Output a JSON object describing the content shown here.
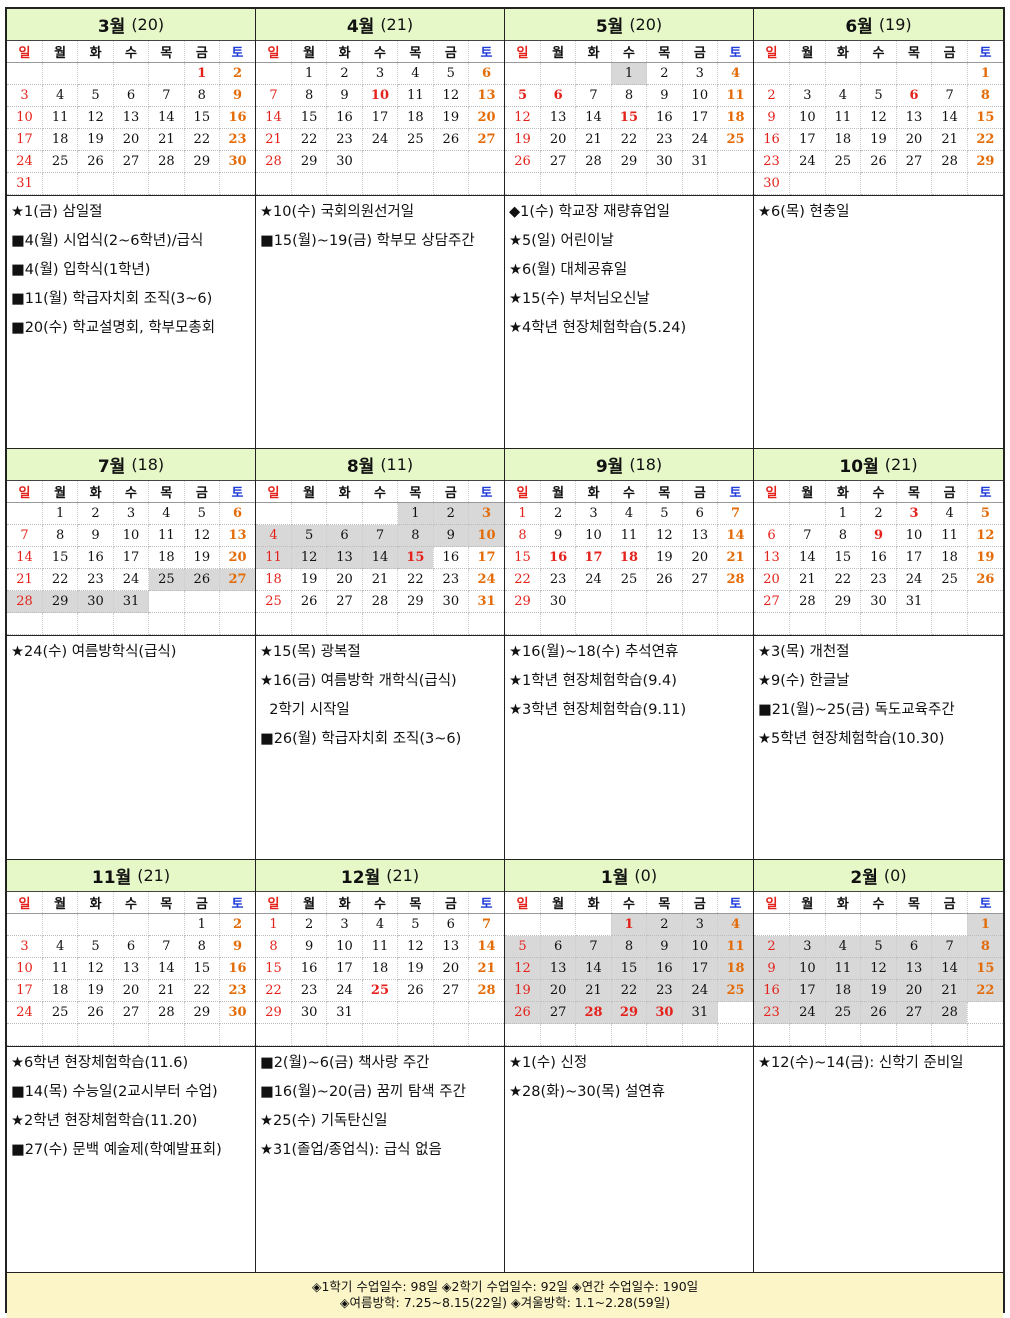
{
  "day_headers": [
    "일",
    "월",
    "화",
    "수",
    "목",
    "금",
    "토"
  ],
  "rows": [
    {
      "months": [
        {
          "name": "3월",
          "count": "(20)",
          "weeks": [
            [
              "",
              "",
              "",
              "",
              "",
              "1",
              "2"
            ],
            [
              "3",
              "4",
              "5",
              "6",
              "7",
              "8",
              "9"
            ],
            [
              "10",
              "11",
              "12",
              "13",
              "14",
              "15",
              "16"
            ],
            [
              "17",
              "18",
              "19",
              "20",
              "21",
              "22",
              "23"
            ],
            [
              "24",
              "25",
              "26",
              "27",
              "28",
              "29",
              "30"
            ],
            [
              "31",
              "",
              "",
              "",
              "",
              "",
              ""
            ]
          ],
          "holidays": [
            "1"
          ],
          "shaded": [],
          "events": [
            "★1(금) 삼일절",
            "■4(월) 시업식(2~6학년)/급식",
            "■4(월) 입학식(1학년)",
            "■11(월) 학급자치회 조직(3~6)",
            "■20(수) 학교설명회, 학부모총회"
          ]
        },
        {
          "name": "4월",
          "count": "(21)",
          "weeks": [
            [
              "",
              "1",
              "2",
              "3",
              "4",
              "5",
              "6"
            ],
            [
              "7",
              "8",
              "9",
              "10",
              "11",
              "12",
              "13"
            ],
            [
              "14",
              "15",
              "16",
              "17",
              "18",
              "19",
              "20"
            ],
            [
              "21",
              "22",
              "23",
              "24",
              "25",
              "26",
              "27"
            ],
            [
              "28",
              "29",
              "30",
              "",
              "",
              "",
              ""
            ]
          ],
          "holidays": [
            "10"
          ],
          "shaded": [],
          "events": [
            "★10(수) 국회의원선거일",
            "■15(월)~19(금) 학부모 상담주간"
          ]
        },
        {
          "name": "5월",
          "count": "(20)",
          "weeks": [
            [
              "",
              "",
              "",
              "1",
              "2",
              "3",
              "4"
            ],
            [
              "5",
              "6",
              "7",
              "8",
              "9",
              "10",
              "11"
            ],
            [
              "12",
              "13",
              "14",
              "15",
              "16",
              "17",
              "18"
            ],
            [
              "19",
              "20",
              "21",
              "22",
              "23",
              "24",
              "25"
            ],
            [
              "26",
              "27",
              "28",
              "29",
              "30",
              "31",
              ""
            ]
          ],
          "holidays": [
            "5",
            "6",
            "15"
          ],
          "shaded": [
            "1"
          ],
          "events": [
            "◆1(수) 학교장 재량휴업일",
            "★5(일) 어린이날",
            "★6(월) 대체공휴일",
            "★15(수) 부처님오신날",
            "★4학년 현장체험학습(5.24)"
          ]
        },
        {
          "name": "6월",
          "count": "(19)",
          "weeks": [
            [
              "",
              "",
              "",
              "",
              "",
              "",
              "1"
            ],
            [
              "2",
              "3",
              "4",
              "5",
              "6",
              "7",
              "8"
            ],
            [
              "9",
              "10",
              "11",
              "12",
              "13",
              "14",
              "15"
            ],
            [
              "16",
              "17",
              "18",
              "19",
              "20",
              "21",
              "22"
            ],
            [
              "23",
              "24",
              "25",
              "26",
              "27",
              "28",
              "29"
            ],
            [
              "30",
              "",
              "",
              "",
              "",
              "",
              ""
            ]
          ],
          "holidays": [
            "6"
          ],
          "shaded": [],
          "events": [
            "★6(목) 현충일"
          ]
        }
      ]
    },
    {
      "months": [
        {
          "name": "7월",
          "count": "(18)",
          "weeks": [
            [
              "",
              "1",
              "2",
              "3",
              "4",
              "5",
              "6"
            ],
            [
              "7",
              "8",
              "9",
              "10",
              "11",
              "12",
              "13"
            ],
            [
              "14",
              "15",
              "16",
              "17",
              "18",
              "19",
              "20"
            ],
            [
              "21",
              "22",
              "23",
              "24",
              "25",
              "26",
              "27"
            ],
            [
              "28",
              "29",
              "30",
              "31",
              "",
              "",
              ""
            ]
          ],
          "holidays": [],
          "shaded": [
            "25",
            "26",
            "27",
            "28",
            "29",
            "30",
            "31"
          ],
          "events": [
            "★24(수) 여름방학식(급식)"
          ]
        },
        {
          "name": "8월",
          "count": "(11)",
          "weeks": [
            [
              "",
              "",
              "",
              "",
              "1",
              "2",
              "3"
            ],
            [
              "4",
              "5",
              "6",
              "7",
              "8",
              "9",
              "10"
            ],
            [
              "11",
              "12",
              "13",
              "14",
              "15",
              "16",
              "17"
            ],
            [
              "18",
              "19",
              "20",
              "21",
              "22",
              "23",
              "24"
            ],
            [
              "25",
              "26",
              "27",
              "28",
              "29",
              "30",
              "31"
            ]
          ],
          "holidays": [
            "15"
          ],
          "shaded": [
            "1",
            "2",
            "3",
            "4",
            "5",
            "6",
            "7",
            "8",
            "9",
            "10",
            "11",
            "12",
            "13",
            "14",
            "15"
          ],
          "events": [
            "★15(목) 광복절",
            "★16(금) 여름방학 개학식(급식)",
            "  2학기 시작일",
            "■26(월) 학급자치회 조직(3~6)"
          ]
        },
        {
          "name": "9월",
          "count": "(18)",
          "weeks": [
            [
              "1",
              "2",
              "3",
              "4",
              "5",
              "6",
              "7"
            ],
            [
              "8",
              "9",
              "10",
              "11",
              "12",
              "13",
              "14"
            ],
            [
              "15",
              "16",
              "17",
              "18",
              "19",
              "20",
              "21"
            ],
            [
              "22",
              "23",
              "24",
              "25",
              "26",
              "27",
              "28"
            ],
            [
              "29",
              "30",
              "",
              "",
              "",
              "",
              ""
            ]
          ],
          "holidays": [
            "16",
            "17",
            "18"
          ],
          "shaded": [],
          "events": [
            "★16(월)~18(수) 추석연휴",
            "★1학년 현장체험학습(9.4)",
            "★3학년 현장체험학습(9.11)"
          ]
        },
        {
          "name": "10월",
          "count": "(21)",
          "weeks": [
            [
              "",
              "",
              "1",
              "2",
              "3",
              "4",
              "5"
            ],
            [
              "6",
              "7",
              "8",
              "9",
              "10",
              "11",
              "12"
            ],
            [
              "13",
              "14",
              "15",
              "16",
              "17",
              "18",
              "19"
            ],
            [
              "20",
              "21",
              "22",
              "23",
              "24",
              "25",
              "26"
            ],
            [
              "27",
              "28",
              "29",
              "30",
              "31",
              "",
              ""
            ]
          ],
          "holidays": [
            "3",
            "9"
          ],
          "shaded": [],
          "events": [
            "★3(목) 개천절",
            "★9(수) 한글날",
            "■21(월)~25(금) 독도교육주간",
            "★5학년 현장체험학습(10.30)"
          ]
        }
      ]
    },
    {
      "months": [
        {
          "name": "11월",
          "count": "(21)",
          "weeks": [
            [
              "",
              "",
              "",
              "",
              "",
              "1",
              "2"
            ],
            [
              "3",
              "4",
              "5",
              "6",
              "7",
              "8",
              "9"
            ],
            [
              "10",
              "11",
              "12",
              "13",
              "14",
              "15",
              "16"
            ],
            [
              "17",
              "18",
              "19",
              "20",
              "21",
              "22",
              "23"
            ],
            [
              "24",
              "25",
              "26",
              "27",
              "28",
              "29",
              "30"
            ]
          ],
          "holidays": [],
          "shaded": [],
          "events": [
            "★6학년 현장체험학습(11.6)",
            "■14(목) 수능일(2교시부터 수업)",
            "★2학년 현장체험학습(11.20)",
            "■27(수) 문백 예술제(학예발표회)"
          ]
        },
        {
          "name": "12월",
          "count": "(21)",
          "weeks": [
            [
              "1",
              "2",
              "3",
              "4",
              "5",
              "6",
              "7"
            ],
            [
              "8",
              "9",
              "10",
              "11",
              "12",
              "13",
              "14"
            ],
            [
              "15",
              "16",
              "17",
              "18",
              "19",
              "20",
              "21"
            ],
            [
              "22",
              "23",
              "24",
              "25",
              "26",
              "27",
              "28"
            ],
            [
              "29",
              "30",
              "31",
              "",
              "",
              "",
              ""
            ]
          ],
          "holidays": [
            "25"
          ],
          "shaded": [],
          "events": [
            "■2(월)~6(금) 책사랑 주간",
            "■16(월)~20(금) 꿈끼 탐색 주간",
            "★25(수) 기독탄신일",
            "★31(졸업/종업식): 급식 없음"
          ]
        },
        {
          "name": "1월",
          "count": "(0)",
          "weeks": [
            [
              "",
              "",
              "",
              "1",
              "2",
              "3",
              "4"
            ],
            [
              "5",
              "6",
              "7",
              "8",
              "9",
              "10",
              "11"
            ],
            [
              "12",
              "13",
              "14",
              "15",
              "16",
              "17",
              "18"
            ],
            [
              "19",
              "20",
              "21",
              "22",
              "23",
              "24",
              "25"
            ],
            [
              "26",
              "27",
              "28",
              "29",
              "30",
              "31",
              ""
            ]
          ],
          "holidays": [
            "1",
            "28",
            "29",
            "30"
          ],
          "shaded": [
            "1",
            "2",
            "3",
            "4",
            "5",
            "6",
            "7",
            "8",
            "9",
            "10",
            "11",
            "12",
            "13",
            "14",
            "15",
            "16",
            "17",
            "18",
            "19",
            "20",
            "21",
            "22",
            "23",
            "24",
            "25",
            "26",
            "27",
            "28",
            "29",
            "30",
            "31"
          ],
          "events": [
            "★1(수) 신정",
            "★28(화)~30(목) 설연휴"
          ]
        },
        {
          "name": "2월",
          "count": "(0)",
          "weeks": [
            [
              "",
              "",
              "",
              "",
              "",
              "",
              "1"
            ],
            [
              "2",
              "3",
              "4",
              "5",
              "6",
              "7",
              "8"
            ],
            [
              "9",
              "10",
              "11",
              "12",
              "13",
              "14",
              "15"
            ],
            [
              "16",
              "17",
              "18",
              "19",
              "20",
              "21",
              "22"
            ],
            [
              "23",
              "24",
              "25",
              "26",
              "27",
              "28",
              ""
            ]
          ],
          "holidays": [],
          "shaded": [
            "1",
            "2",
            "3",
            "4",
            "5",
            "6",
            "7",
            "8",
            "9",
            "10",
            "11",
            "12",
            "13",
            "14",
            "15",
            "16",
            "17",
            "18",
            "19",
            "20",
            "21",
            "22",
            "23",
            "24",
            "25",
            "26",
            "27",
            "28"
          ],
          "events": [
            "★12(수)~14(금): 신학기 준비일"
          ]
        }
      ]
    }
  ],
  "footer": {
    "line1": "◈1학기 수업일수: 98일  ◈2학기 수업일수: 92일  ◈연간 수업일수: 190일",
    "line2": "◈여름방학: 7.25~8.15(22일)  ◈겨울방학: 1.1~2.28(59일)"
  }
}
